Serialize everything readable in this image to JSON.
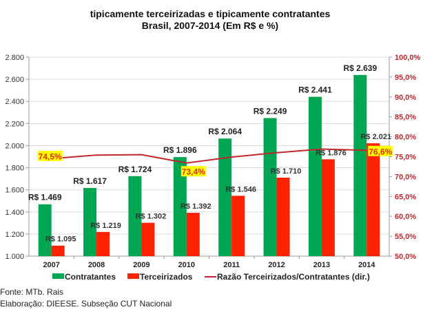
{
  "chart_data": {
    "type": "bar",
    "title": "tipicamente terceirizadas e tipicamente contratantes",
    "subtitle": "Brasil, 2007-2014 (Em R$ e %)",
    "categories": [
      "2007",
      "2008",
      "2009",
      "2010",
      "2011",
      "2012",
      "2013",
      "2014"
    ],
    "series": [
      {
        "name": "Contratantes",
        "type": "bar",
        "axis": "left",
        "color": "#00a651",
        "values": [
          1469,
          1617,
          1724,
          1896,
          2064,
          2249,
          2441,
          2639
        ],
        "labels": [
          "R$ 1.469",
          "R$ 1.617",
          "R$ 1.724",
          "R$ 1.896",
          "R$ 2.064",
          "R$ 2.249",
          "R$ 2.441",
          "R$ 2.639"
        ]
      },
      {
        "name": "Terceirizados",
        "type": "bar",
        "axis": "left",
        "color": "#ff2200",
        "values": [
          1095,
          1219,
          1302,
          1392,
          1546,
          1710,
          1876,
          2021
        ],
        "labels": [
          "R$ 1.095",
          "R$ 1.219",
          "R$ 1.302",
          "R$ 1.392",
          "R$ 1.546",
          "R$ 1.710",
          "R$ 1.876",
          "R$ 2.021"
        ]
      },
      {
        "name": "Razão Terceirizados/Contratantes (dir.)",
        "type": "line",
        "axis": "right",
        "color": "#c0272d",
        "values": [
          74.5,
          75.4,
          75.5,
          73.4,
          74.9,
          76.0,
          76.9,
          76.6
        ],
        "highlight_labels": [
          {
            "index": 0,
            "text": "74,5%"
          },
          {
            "index": 3,
            "text": "73,4%"
          },
          {
            "index": 7,
            "text": "76,6%"
          }
        ]
      }
    ],
    "yaxis_left": {
      "min": 1000,
      "max": 2800,
      "step": 200,
      "tick_labels": [
        "1.000",
        "1.200",
        "1.400",
        "1.600",
        "1.800",
        "2.000",
        "2.200",
        "2.400",
        "2.600",
        "2.800"
      ]
    },
    "yaxis_right": {
      "min": 50,
      "max": 100,
      "step": 5,
      "color": "#c0272d",
      "tick_labels": [
        "50,0%",
        "55,0%",
        "60,0%",
        "65,0%",
        "70,0%",
        "75,0%",
        "80,0%",
        "85,0%",
        "90,0%",
        "95,0%",
        "100,0%"
      ]
    },
    "grid": true,
    "legend_position": "bottom",
    "label_highlight_color": "#ffff00"
  },
  "footer": {
    "source": "Fonte: MTb. Rais",
    "credit": "Elaboração: DIEESE. Subseção CUT Nacional"
  }
}
